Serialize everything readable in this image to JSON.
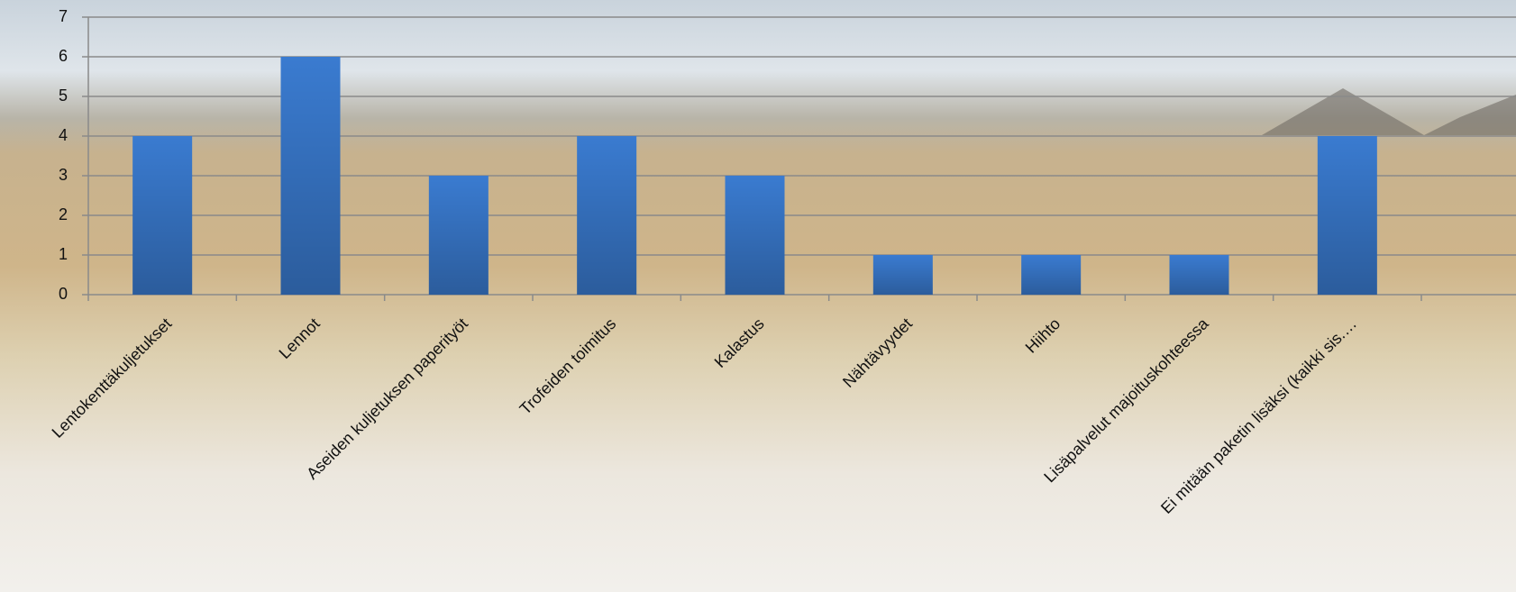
{
  "chart_data": {
    "type": "bar",
    "categories": [
      "Lentokenttäkuljetukset",
      "Lennot",
      "Aseiden kuljetuksen paperityöt",
      "Trofeiden toimitus",
      "Kalastus",
      "Nähtävyydet",
      "Hiihto",
      "Lisäpalvelut majoituskohteessa",
      "Ei mitään paketin lisäksi (kaikki sis.…"
    ],
    "values": [
      4,
      6,
      3,
      4,
      3,
      1,
      1,
      1,
      4
    ],
    "color": "#3a7bd0",
    "ylim": [
      0,
      7
    ],
    "yticks": [
      0,
      1,
      2,
      3,
      4,
      5,
      6,
      7
    ],
    "grid": true
  }
}
